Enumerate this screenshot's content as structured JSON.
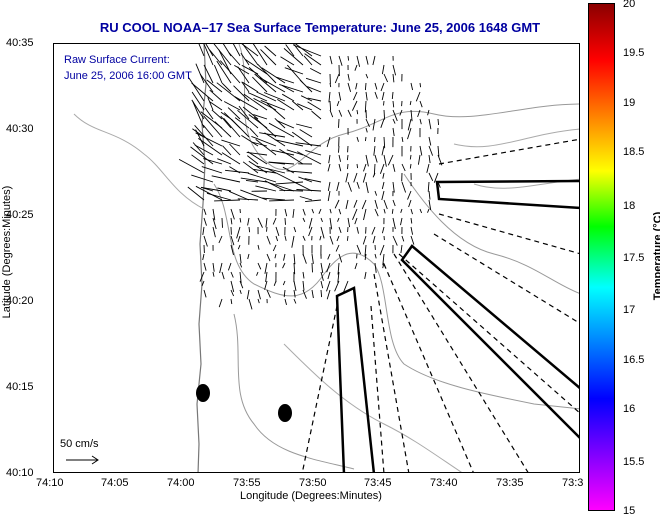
{
  "title": "RU COOL   NOAA–17  Sea Surface Temperature:  June 25, 2006 1648 GMT",
  "current_note": {
    "line1": "Raw Surface Current:",
    "line2": "June 25, 2006 16:00 GMT"
  },
  "axes": {
    "xlabel": "Longitude (Degrees:Minutes)",
    "ylabel": "Latitude (Degrees:Minutes)",
    "x_ticks": [
      "74:10",
      "74:05",
      "74:00",
      "73:55",
      "73:50",
      "73:45",
      "73:40",
      "73:35",
      "73:3"
    ],
    "y_ticks": [
      "40:35",
      "40:30",
      "40:25",
      "40:20",
      "40:15",
      "40:10"
    ]
  },
  "scale_bar": {
    "label": "50 cm/s"
  },
  "colorbar": {
    "label": "Temperature (°C)",
    "ticks": [
      "20",
      "19.5",
      "19",
      "18.5",
      "18",
      "17.5",
      "17",
      "16.5",
      "16",
      "15.5",
      "15"
    ],
    "colors": [
      "#8b0000",
      "#ff0000",
      "#ff8000",
      "#ffff00",
      "#00ff00",
      "#00ffff",
      "#0080ff",
      "#0000ff",
      "#8000ff",
      "#ff00ff"
    ]
  }
}
